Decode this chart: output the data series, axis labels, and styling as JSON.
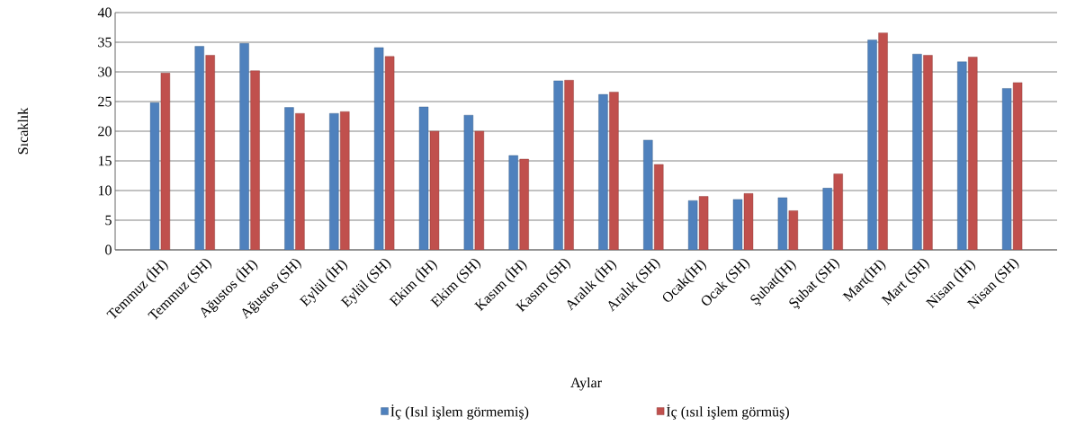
{
  "chart_data": {
    "type": "bar",
    "xlabel": "Aylar",
    "ylabel": "Sıcaklık",
    "categories": [
      "Temmuz (İH)",
      "Temmuz (SH)",
      "Ağustos (İH)",
      "Ağustos (SH)",
      "Eylül (İH)",
      "Eylül (SH)",
      "Ekim (İH)",
      "Ekim (SH)",
      "Kasım (İH)",
      "Kasım (SH)",
      "Aralık (İH)",
      "Aralık (SH)",
      "Ocak(İH)",
      "Ocak (SH)",
      "Şubat(İH)",
      "Şubat (SH)",
      "Mart(İH)",
      "Mart (SH)",
      "Nisan (İH)",
      "Nisan (SH)"
    ],
    "series": [
      {
        "name": "İç (Isıl işlem görmemiş)",
        "color": "#4f81bd",
        "values": [
          24.8,
          34.3,
          34.8,
          24,
          23,
          34.1,
          24.1,
          22.7,
          15.9,
          28.5,
          26.2,
          18.5,
          8.3,
          8.5,
          8.8,
          10.4,
          35.4,
          33,
          31.7,
          27.2
        ]
      },
      {
        "name": "İç (ısıl işlem görmüş)",
        "color": "#c0504d",
        "values": [
          29.8,
          32.8,
          30.2,
          23,
          23.3,
          32.6,
          20,
          20,
          15.3,
          28.6,
          26.6,
          14.4,
          9,
          9.5,
          6.6,
          12.8,
          36.6,
          32.8,
          32.5,
          28.2
        ]
      }
    ],
    "ylim": [
      0,
      40
    ],
    "yticks": [
      0,
      5,
      10,
      15,
      20,
      25,
      30,
      35,
      40
    ],
    "grid": "y",
    "legend": "bottom"
  }
}
